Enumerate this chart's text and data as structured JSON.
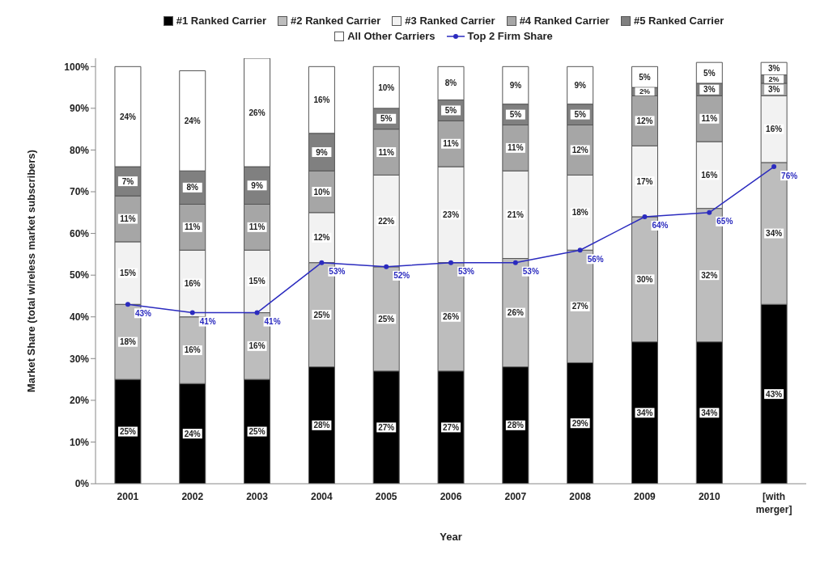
{
  "chart_data": {
    "type": "bar",
    "stacked": true,
    "xlabel": "Year",
    "ylabel": "Market Share (total wireless market subscribers)",
    "categories": [
      "2001",
      "2002",
      "2003",
      "2004",
      "2005",
      "2006",
      "2007",
      "2008",
      "2009",
      "2010",
      "[with merger]"
    ],
    "ylim": [
      0,
      102
    ],
    "yticks": [
      {
        "value": 0,
        "label": "0%"
      },
      {
        "value": 10,
        "label": "10%"
      },
      {
        "value": 20,
        "label": "20%"
      },
      {
        "value": 30,
        "label": "30%"
      },
      {
        "value": 40,
        "label": "40%"
      },
      {
        "value": 50,
        "label": "50%"
      },
      {
        "value": 60,
        "label": "60%"
      },
      {
        "value": 70,
        "label": "70%"
      },
      {
        "value": 80,
        "label": "80%"
      },
      {
        "value": 90,
        "label": "90%"
      },
      {
        "value": 100,
        "label": "100%"
      }
    ],
    "legend": "top",
    "marker": "circle",
    "series": [
      {
        "name": "#1 Ranked Carrier",
        "color": "#000000",
        "values": [
          25,
          24,
          25,
          28,
          27,
          27,
          28,
          29,
          34,
          34,
          43
        ],
        "value_labels": [
          "25%",
          "24%",
          "25%",
          "28%",
          "27%",
          "27%",
          "28%",
          "29%",
          "34%",
          "34%",
          "43%"
        ]
      },
      {
        "name": "#2 Ranked Carrier",
        "color": "#bdbdbd",
        "values": [
          18,
          16,
          16,
          25,
          25,
          26,
          26,
          27,
          30,
          32,
          34
        ],
        "value_labels": [
          "18%",
          "16%",
          "16%",
          "25%",
          "25%",
          "26%",
          "26%",
          "27%",
          "30%",
          "32%",
          "34%"
        ]
      },
      {
        "name": "#3 Ranked Carrier",
        "color": "#f2f2f2",
        "values": [
          15,
          16,
          15,
          12,
          22,
          23,
          21,
          18,
          17,
          16,
          16
        ],
        "value_labels": [
          "15%",
          "16%",
          "15%",
          "12%",
          "22%",
          "23%",
          "21%",
          "18%",
          "17%",
          "16%",
          "16%"
        ]
      },
      {
        "name": "#4 Ranked Carrier",
        "color": "#a6a6a6",
        "values": [
          11,
          11,
          11,
          10,
          11,
          11,
          11,
          12,
          12,
          11,
          3
        ],
        "value_labels": [
          "11%",
          "11%",
          "11%",
          "10%",
          "11%",
          "11%",
          "11%",
          "12%",
          "12%",
          "11%",
          "3%"
        ]
      },
      {
        "name": "#5 Ranked Carrier",
        "color": "#808080",
        "values": [
          7,
          8,
          9,
          9,
          5,
          5,
          5,
          5,
          2,
          3,
          2
        ],
        "value_labels": [
          "7%",
          "8%",
          "9%",
          "9%",
          "5%",
          "5%",
          "5%",
          "5%",
          "2%",
          "3%",
          "2%"
        ]
      },
      {
        "name": "All Other Carriers",
        "color": "#ffffff",
        "values": [
          24,
          24,
          26,
          16,
          10,
          8,
          9,
          9,
          5,
          5,
          3
        ],
        "value_labels": [
          "24%",
          "24%",
          "26%",
          "16%",
          "10%",
          "8%",
          "9%",
          "9%",
          "5%",
          "5%",
          "3%"
        ]
      },
      {
        "name": "Top 2 Firm Share",
        "type": "line",
        "color": "#2b2bbf",
        "values": [
          43,
          41,
          41,
          53,
          52,
          53,
          53,
          56,
          64,
          65,
          76
        ],
        "value_labels": [
          "43%",
          "41%",
          "41%",
          "53%",
          "52%",
          "53%",
          "53%",
          "56%",
          "64%",
          "65%",
          "76%"
        ]
      }
    ]
  }
}
